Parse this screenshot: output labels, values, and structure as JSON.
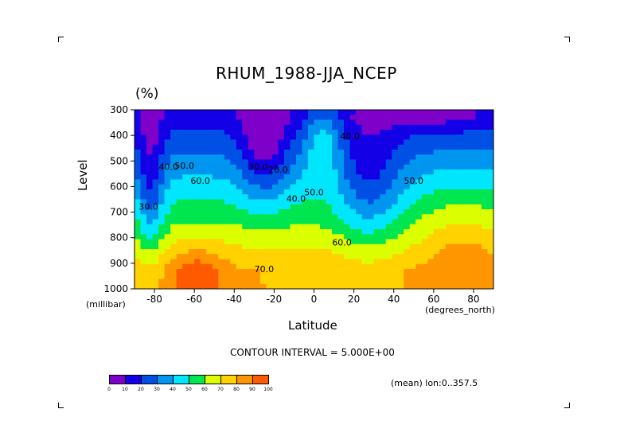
{
  "chart_data": {
    "type": "contour",
    "title": "RHUM_1988-JJA_NCEP",
    "units": "(%)",
    "xlabel": "Latitude",
    "ylabel": "Level",
    "x_units": "(degrees_north)",
    "y_units": "(millibar)",
    "xlim": [
      -90,
      90
    ],
    "ylim": [
      1000,
      300
    ],
    "x_ticks": [
      "-80",
      "-60",
      "-40",
      "-20",
      "0",
      "20",
      "40",
      "60",
      "80"
    ],
    "y_ticks": [
      "300",
      "400",
      "500",
      "600",
      "700",
      "800",
      "900",
      "1000"
    ],
    "contour_interval_text": "CONTOUR INTERVAL = 5.000E+00",
    "mean_text": "(mean) lon:0..357.5",
    "contour_labels": [
      {
        "text": "60.0",
        "lat": -57,
        "level": 590
      },
      {
        "text": "40.0",
        "lat": -73,
        "level": 535
      },
      {
        "text": "50.0",
        "lat": -65,
        "level": 530
      },
      {
        "text": "30.0",
        "lat": -83,
        "level": 690
      },
      {
        "text": "30.0",
        "lat": -28,
        "level": 535
      },
      {
        "text": "20.0",
        "lat": -18,
        "level": 545
      },
      {
        "text": "40.0",
        "lat": -9,
        "level": 660
      },
      {
        "text": "50.0",
        "lat": 0,
        "level": 635
      },
      {
        "text": "60.0",
        "lat": 14,
        "level": 830
      },
      {
        "text": "70.0",
        "lat": -25,
        "level": 935
      },
      {
        "text": "40.0",
        "lat": 18,
        "level": 415
      },
      {
        "text": "50.0",
        "lat": 50,
        "level": 590
      }
    ],
    "colorbar": {
      "levels": [
        "0",
        "10",
        "20",
        "30",
        "40",
        "50",
        "60",
        "70",
        "80",
        "90",
        "100"
      ],
      "colors": [
        "#7f00c8",
        "#1400e6",
        "#0050e6",
        "#0096f0",
        "#00e6ff",
        "#00e650",
        "#dcff00",
        "#ffd200",
        "#ff9600",
        "#ff5a00"
      ]
    }
  }
}
